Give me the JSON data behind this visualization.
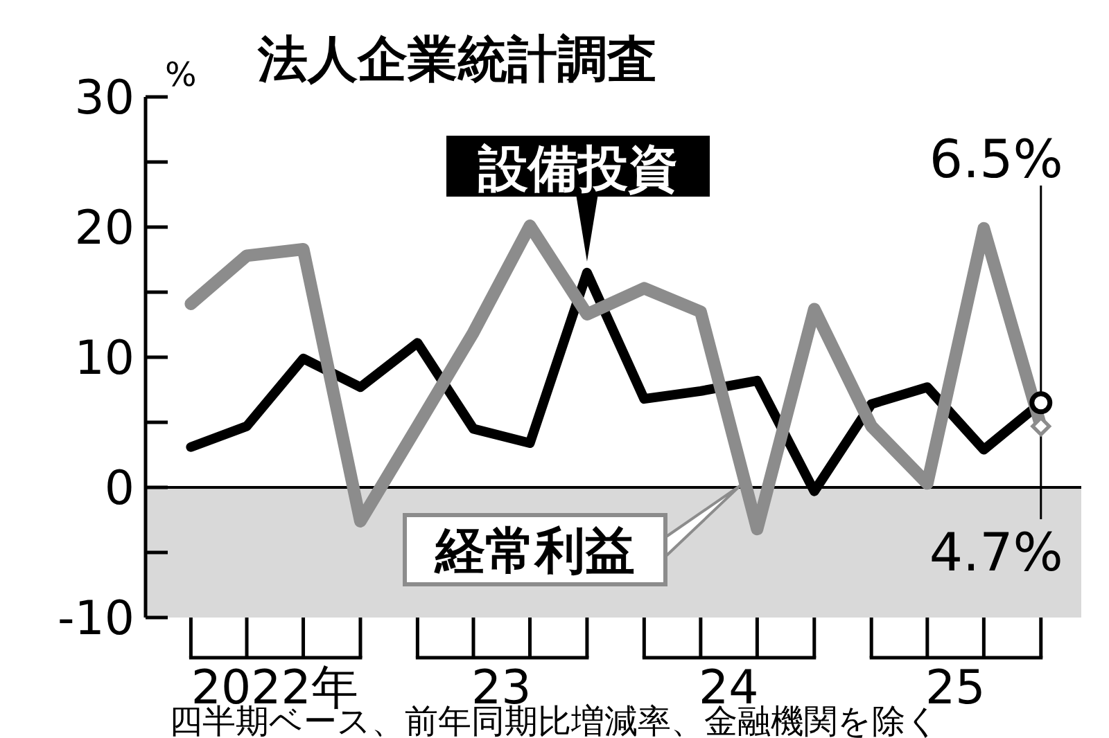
{
  "chart_data": {
    "type": "line",
    "title": "法人企業統計調査",
    "ylabel": "%",
    "x": [
      "2022-01",
      "2022-04",
      "2022-07",
      "2022-10",
      "2023-01",
      "2023-04",
      "2023-07",
      "2023-10",
      "2024-01",
      "2024-04",
      "2024-07",
      "2024-10",
      "2025-01",
      "2025-04",
      "2025-07",
      "2025-10"
    ],
    "series": [
      {
        "name": "設備投資",
        "color": "#000000",
        "values": [
          3.1,
          4.7,
          9.9,
          7.7,
          11.1,
          4.5,
          3.4,
          16.5,
          6.8,
          7.4,
          8.2,
          -0.3,
          6.4,
          7.7,
          2.9,
          6.5
        ]
      },
      {
        "name": "経常利益",
        "color": "#8c8c8c",
        "values": [
          14.1,
          17.8,
          18.3,
          -2.6,
          4.7,
          11.9,
          20.1,
          13.3,
          15.3,
          13.5,
          -3.2,
          13.7,
          4.7,
          0.3,
          19.9,
          4.7
        ]
      }
    ],
    "xlim": [
      "2021-10-20",
      "2025-12-05"
    ],
    "xticks": [
      {
        "value": "2022-05-16",
        "label": "2022年"
      },
      {
        "value": "2023-05-16",
        "label": "23"
      },
      {
        "value": "2024-05-16",
        "label": "24"
      },
      {
        "value": "2025-05-16",
        "label": "25"
      }
    ],
    "ylim": [
      -10,
      30
    ],
    "yticks": [
      -10,
      {
        "value": -5,
        "label": null
      },
      0,
      {
        "value": 5,
        "label": null
      },
      10,
      {
        "value": 15,
        "label": null
      },
      20,
      {
        "value": 25,
        "label": null
      },
      30
    ],
    "bands": [
      {
        "axis": "y",
        "from": -10,
        "to": 0,
        "color": "#d9d9d9"
      }
    ],
    "ref_lines": [
      {
        "axis": "y",
        "value": 0,
        "color": "#000000"
      }
    ],
    "annotations": [
      {
        "text": "6.5%",
        "x": "2025-10",
        "y": 6.5
      },
      {
        "text": "4.7%",
        "x": "2025-10",
        "y": 4.7
      },
      "四半期ベース、前年同期比増減率、金融機関を除く"
    ],
    "grid": false,
    "legend": "bottom",
    "marker": "none",
    "line_style": "solid"
  }
}
